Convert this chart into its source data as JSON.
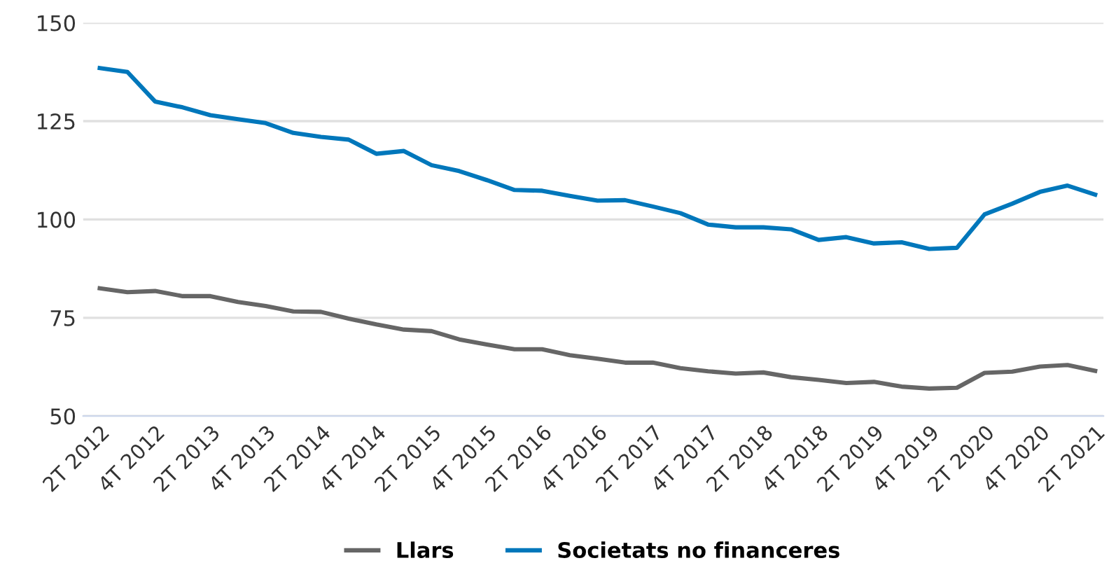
{
  "chart_data": {
    "type": "line",
    "categories": [
      "2T 2012",
      null,
      "4T 2012",
      null,
      "2T 2013",
      null,
      "4T 2013",
      null,
      "2T 2014",
      null,
      "4T 2014",
      null,
      "2T 2015",
      null,
      "4T 2015",
      null,
      "2T 2016",
      null,
      "4T 2016",
      null,
      "2T 2017",
      null,
      "4T 2017",
      null,
      "2T 2018",
      null,
      "4T 2018",
      null,
      "2T 2019",
      null,
      "4T 2019",
      null,
      "2T 2020",
      null,
      "4T 2020",
      null,
      "2T 2021"
    ],
    "series": [
      {
        "name": "Llars",
        "color": "#666666",
        "values": [
          82.5,
          81.5,
          81.8,
          80.5,
          80.5,
          79,
          78,
          76.6,
          76.5,
          74.8,
          73.3,
          72,
          71.6,
          69.5,
          68.2,
          67,
          67,
          65.5,
          64.6,
          63.6,
          63.6,
          62.2,
          61.4,
          60.8,
          61.1,
          59.9,
          59.2,
          58.4,
          58.7,
          57.5,
          57,
          57.2,
          61,
          61.3,
          62.6,
          63,
          61.5
        ]
      },
      {
        "name": "Societats no financeres",
        "color": "#0077bb",
        "values": [
          138.5,
          137.5,
          130,
          128.5,
          126.5,
          125.5,
          124.5,
          122,
          121,
          120.3,
          116.7,
          117.4,
          113.8,
          112.3,
          110,
          107.5,
          107.3,
          106,
          104.8,
          104.9,
          103.3,
          101.6,
          98.7,
          98,
          98,
          97.5,
          94.8,
          95.5,
          93.9,
          94.2,
          92.5,
          92.8,
          101.3,
          104,
          107,
          108.6,
          106.3
        ]
      }
    ],
    "ylim": [
      50,
      150
    ],
    "yticks": [
      50,
      75,
      100,
      125,
      150
    ],
    "grid": "y",
    "legend": "bottom",
    "marker": "none",
    "line_style": "solid"
  }
}
